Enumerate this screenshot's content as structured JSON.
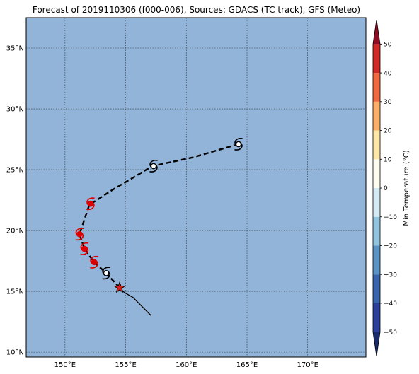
{
  "title": "Forecast of 2019110306 (f000-006), Sources: GDACS (TC track), GFS (Meteo)",
  "map": {
    "lon_range": [
      146.8,
      174.8
    ],
    "lat_range": [
      9.6,
      37.5
    ],
    "lon_ticks": [
      150,
      155,
      160,
      165,
      170
    ],
    "lat_ticks": [
      10,
      15,
      20,
      25,
      30,
      35
    ],
    "lon_tick_labels": [
      "150°E",
      "155°E",
      "160°E",
      "165°E",
      "170°E"
    ],
    "lat_tick_labels": [
      "10°N",
      "15°N",
      "20°N",
      "25°N",
      "30°N",
      "35°N"
    ],
    "ocean_color": "#92b4d8",
    "grid": true
  },
  "track": {
    "past": [
      [
        157.1,
        13.0
      ],
      [
        156.3,
        13.8
      ],
      [
        155.6,
        14.5
      ],
      [
        154.9,
        14.9
      ],
      [
        154.5,
        15.3
      ]
    ],
    "current_position": [
      154.5,
      15.3
    ],
    "forecast": [
      [
        154.5,
        15.3
      ],
      [
        153.4,
        16.5
      ],
      [
        152.4,
        17.4
      ],
      [
        151.6,
        18.5
      ],
      [
        151.2,
        19.7
      ],
      [
        152.0,
        22.1
      ],
      [
        154.0,
        23.4
      ],
      [
        155.7,
        24.4
      ],
      [
        157.2,
        25.3
      ],
      [
        160.5,
        26.0
      ],
      [
        164.3,
        27.1
      ]
    ],
    "symbols": [
      {
        "lon": 153.4,
        "lat": 16.5,
        "color": "#000000",
        "fill": "#ffffff",
        "icon": "cyclone-icon"
      },
      {
        "lon": 152.4,
        "lat": 17.4,
        "color": "#dd0000",
        "fill": "#dd0000",
        "icon": "cyclone-icon"
      },
      {
        "lon": 151.6,
        "lat": 18.5,
        "color": "#dd0000",
        "fill": "#dd0000",
        "icon": "cyclone-icon"
      },
      {
        "lon": 151.2,
        "lat": 19.7,
        "color": "#dd0000",
        "fill": "#dd0000",
        "icon": "cyclone-icon"
      },
      {
        "lon": 152.1,
        "lat": 22.2,
        "color": "#dd0000",
        "fill": "#dd0000",
        "icon": "cyclone-icon"
      },
      {
        "lon": 157.3,
        "lat": 25.3,
        "color": "#000000",
        "fill": "#ffffff",
        "icon": "cyclone-icon"
      },
      {
        "lon": 164.3,
        "lat": 27.1,
        "color": "#000000",
        "fill": "#ffffff",
        "icon": "cyclone-icon"
      }
    ],
    "current_marker": {
      "icon": "star-icon",
      "color": "#d62020"
    }
  },
  "colorbar": {
    "label": "Min Temperature (°C)",
    "min": -55,
    "max": 55,
    "ticks": [
      50,
      40,
      30,
      20,
      10,
      0,
      -10,
      -20,
      -30,
      -40,
      -50
    ],
    "tick_labels": [
      "50",
      "40",
      "30",
      "20",
      "10",
      "0",
      "−10",
      "−20",
      "−30",
      "−40",
      "−50"
    ],
    "bins": [
      {
        "from": -55,
        "to": -50,
        "color": "#1b2a6b"
      },
      {
        "from": -50,
        "to": -40,
        "color": "#2c3e99"
      },
      {
        "from": -40,
        "to": -30,
        "color": "#3a64ab"
      },
      {
        "from": -30,
        "to": -20,
        "color": "#5b93c4"
      },
      {
        "from": -20,
        "to": -10,
        "color": "#93c4de"
      },
      {
        "from": -10,
        "to": 0,
        "color": "#d4ebf4"
      },
      {
        "from": 0,
        "to": 10,
        "color": "#fdfcee"
      },
      {
        "from": 10,
        "to": 20,
        "color": "#fde7a8"
      },
      {
        "from": 20,
        "to": 30,
        "color": "#fbb06a"
      },
      {
        "from": 30,
        "to": 40,
        "color": "#ef6a40"
      },
      {
        "from": 40,
        "to": 50,
        "color": "#cf2a27"
      },
      {
        "from": 50,
        "to": 55,
        "color": "#8f0b24"
      }
    ]
  }
}
